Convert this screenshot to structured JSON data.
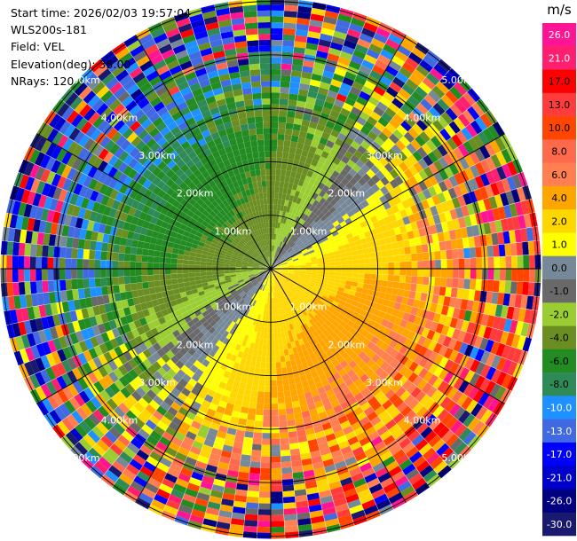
{
  "info": {
    "start_time": "Start time: 2026/02/03 19:57:04",
    "instrument": "WLS200s-181",
    "field": "Field: VEL",
    "elevation": "Elevation(deg): 35.00",
    "nrays": "NRays: 120"
  },
  "chart_data": {
    "type": "heatmap",
    "projection": "polar",
    "field": "VEL",
    "n_rays": 120,
    "range_rings_km": [
      1,
      2,
      3,
      4,
      5
    ],
    "range_labels": [
      "1.00km",
      "2.00km",
      "3.00km",
      "4.00km",
      "5.00km"
    ],
    "colorbar": {
      "unit": "m/s",
      "ticks": [
        "26.0",
        "21.0",
        "17.0",
        "13.0",
        "10.0",
        "8.0",
        "6.0",
        "4.0",
        "2.0",
        "1.0",
        "0.0",
        "-1.0",
        "-2.0",
        "-4.0",
        "-6.0",
        "-8.0",
        "-10.0",
        "-13.0",
        "-17.0",
        "-21.0",
        "-26.0",
        "-30.0"
      ],
      "colors": [
        "#ff1493",
        "#ff1f6e",
        "#ff0000",
        "#ff3b3b",
        "#ff4500",
        "#ff6a4d",
        "#ff7f50",
        "#ffa500",
        "#ffd700",
        "#ffff00",
        "#778899",
        "#696969",
        "#9acd32",
        "#6b8e23",
        "#228b22",
        "#2e8b57",
        "#1e90ff",
        "#4169e1",
        "#0000ff",
        "#0000cd",
        "#000080",
        "#191970"
      ]
    },
    "velocity_pattern": {
      "min_velocity": -30,
      "max_velocity": 30,
      "positive_sector_direction": "south-east",
      "negative_sector_direction": "north-west"
    }
  }
}
